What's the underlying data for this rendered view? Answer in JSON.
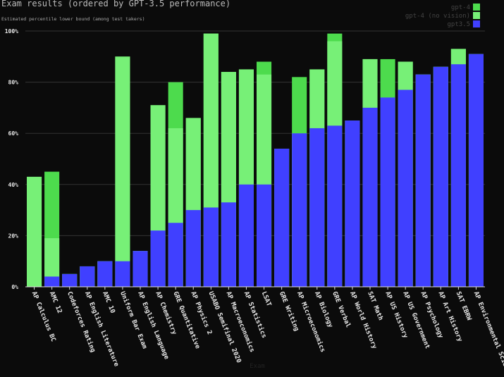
{
  "chart_data": {
    "type": "bar",
    "title": "Exam results (ordered by GPT-3.5 performance)",
    "subtitle": "Estimated percentile lower bound (among test takers)",
    "x_label": "Exam",
    "categories": [
      "AP Calculus BC",
      "AMC 12",
      "Codeforces Rating",
      "AP English Literature",
      "AMC 10",
      "Uniform Bar Exam",
      "AP English Language",
      "AP Chemistry",
      "GRE Quantitative",
      "AP Physics 2",
      "USABO Semifinal 2020",
      "AP Macroeconomics",
      "AP Statistics",
      "LSAT",
      "GRE Writing",
      "AP Microeconomics",
      "AP Biology",
      "GRE Verbal",
      "AP World History",
      "SAT Math",
      "AP US History",
      "AP US Government",
      "AP Psychology",
      "AP Art History",
      "SAT EBRW",
      "AP Environmental Science"
    ],
    "series": [
      {
        "name": "gpt-4",
        "color": "#4ddb4d",
        "values": [
          43,
          45,
          5,
          8,
          10,
          90,
          14,
          71,
          80,
          66,
          99,
          84,
          85,
          88,
          54,
          82,
          85,
          99,
          65,
          89,
          89,
          88,
          83,
          86,
          93,
          91
        ]
      },
      {
        "name": "gpt-4 (no vision)",
        "color": "#77f077",
        "values": [
          43,
          19,
          5,
          8,
          10,
          90,
          14,
          71,
          62,
          66,
          99,
          84,
          85,
          83,
          54,
          60,
          85,
          96,
          65,
          89,
          74,
          88,
          83,
          86,
          93,
          91
        ]
      },
      {
        "name": "gpt3.5",
        "color": "#4040ff",
        "values": [
          0,
          4,
          5,
          8,
          10,
          10,
          14,
          22,
          25,
          30,
          31,
          33,
          40,
          40,
          54,
          60,
          62,
          63,
          65,
          70,
          74,
          77,
          83,
          86,
          87,
          91
        ]
      }
    ],
    "ylim": [
      0,
      100
    ],
    "yticks": [
      {
        "value": 0,
        "label": "0%"
      },
      {
        "value": 20,
        "label": "20%"
      },
      {
        "value": 40,
        "label": "40%"
      },
      {
        "value": 60,
        "label": "60%"
      },
      {
        "value": 80,
        "label": "80%"
      },
      {
        "value": 100,
        "label": "100%"
      }
    ],
    "grid": true,
    "legend": "top-right"
  }
}
